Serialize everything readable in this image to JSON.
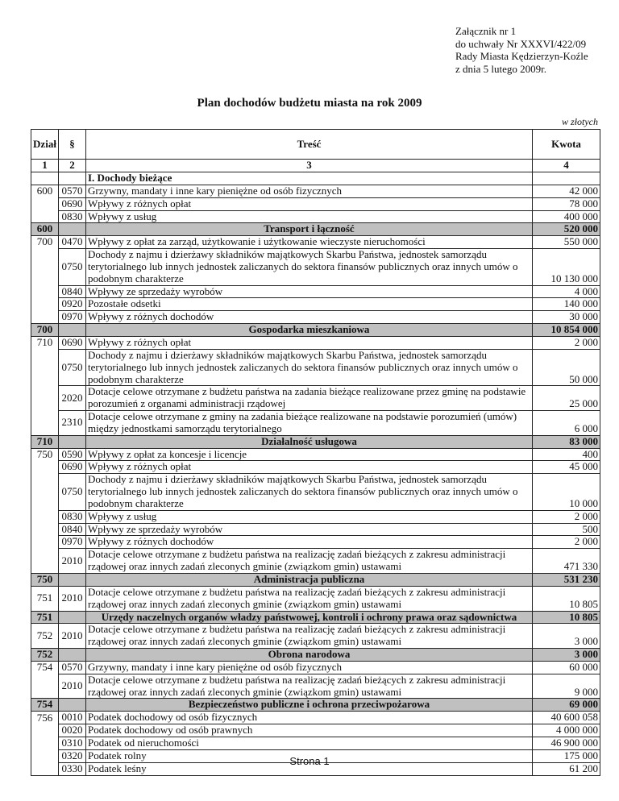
{
  "annex": [
    "Załącznik nr 1",
    "do uchwały Nr XXXVI/422/09",
    "Rady Miasta Kędzierzyn-Koźle",
    "z dnia 5 lutego 2009r."
  ],
  "title": "Plan dochodów budżetu miasta na rok 2009",
  "unit": "w złotych",
  "headers": {
    "dzial": "Dział",
    "par": "§",
    "tresc": "Treść",
    "kwota": "Kwota"
  },
  "col_numbers": [
    "1",
    "2",
    "3",
    "4"
  ],
  "rows": [
    {
      "type": "section",
      "dzial": "",
      "par": "",
      "text": "I. Dochody bieżące",
      "amount": ""
    },
    {
      "type": "item",
      "dzial": "600",
      "par": "0570",
      "text": "Grzywny, mandaty i inne kary pieniężne od osób fizycznych",
      "amount": "42 000"
    },
    {
      "type": "item",
      "dzial": "",
      "par": "0690",
      "text": "Wpływy z różnych opłat",
      "amount": "78 000"
    },
    {
      "type": "item",
      "dzial": "",
      "par": "0830",
      "text": "Wpływy z usług",
      "amount": "400 000"
    },
    {
      "type": "sum",
      "dzial": "600",
      "par": "",
      "text": "Transport i łączność",
      "amount": "520 000"
    },
    {
      "type": "item",
      "dzial": "700",
      "par": "0470",
      "text": "Wpływy z opłat za zarząd, użytkowanie i użytkowanie wieczyste nieruchomości",
      "amount": "550 000"
    },
    {
      "type": "item",
      "dzial": "",
      "par": "0750",
      "text": "Dochody z najmu i dzierżawy składników majątkowych Skarbu Państwa, jednostek samorządu terytorialnego lub innych jednostek zaliczanych do sektora finansów publicznych oraz innych umów  o podobnym charakterze",
      "amount": "10 130 000"
    },
    {
      "type": "item",
      "dzial": "",
      "par": "0840",
      "text": "Wpływy ze sprzedaży wyrobów",
      "amount": "4 000"
    },
    {
      "type": "item",
      "dzial": "",
      "par": "0920",
      "text": "Pozostałe odsetki",
      "amount": "140 000"
    },
    {
      "type": "item",
      "dzial": "",
      "par": "0970",
      "text": "Wpływy z różnych dochodów",
      "amount": "30 000"
    },
    {
      "type": "sum",
      "dzial": "700",
      "par": "",
      "text": "Gospodarka mieszkaniowa",
      "amount": "10 854 000"
    },
    {
      "type": "item",
      "dzial": "710",
      "par": "0690",
      "text": "Wpływy z różnych opłat",
      "amount": "2 000"
    },
    {
      "type": "item",
      "dzial": "",
      "par": "0750",
      "text": "Dochody z najmu i dzierżawy składników majątkowych Skarbu Państwa, jednostek samorządu terytorialnego lub innych jednostek zaliczanych do sektora finansów publicznych oraz innych umów o podobnym charakterze",
      "amount": "50 000"
    },
    {
      "type": "item",
      "dzial": "",
      "par": "2020",
      "text": "Dotacje celowe otrzymane z budżetu państwa na zadania bieżące realizowane przez gminę na podstawie porozumień z organami administracji rządowej",
      "amount": "25 000"
    },
    {
      "type": "item",
      "dzial": "",
      "par": "2310",
      "text": "Dotacje celowe otrzymane z gminy na zadania bieżące realizowane na podstawie porozumień (umów) między jednostkami samorządu terytorialnego",
      "amount": "6 000"
    },
    {
      "type": "sum",
      "dzial": "710",
      "par": "",
      "text": "Działalność usługowa",
      "amount": "83 000"
    },
    {
      "type": "item",
      "dzial": "750",
      "par": "0590",
      "text": "Wpływy z opłat za koncesje i licencje",
      "amount": "400"
    },
    {
      "type": "item",
      "dzial": "",
      "par": "0690",
      "text": "Wpływy z różnych opłat",
      "amount": "45 000"
    },
    {
      "type": "item",
      "dzial": "",
      "par": "0750",
      "text": "Dochody z najmu i dzierżawy składników majątkowych Skarbu Państwa, jednostek samorządu terytorialnego lub innych jednostek zaliczanych do sektora finansów publicznych oraz innych umów o podobnym charakterze",
      "amount": "10 000"
    },
    {
      "type": "item",
      "dzial": "",
      "par": "0830",
      "text": "Wpływy z usług",
      "amount": "2 000"
    },
    {
      "type": "item",
      "dzial": "",
      "par": "0840",
      "text": "Wpływy ze sprzedaży wyrobów",
      "amount": "500"
    },
    {
      "type": "item",
      "dzial": "",
      "par": "0970",
      "text": "Wpływy z różnych dochodów",
      "amount": "2 000"
    },
    {
      "type": "item",
      "dzial": "",
      "par": "2010",
      "text": "Dotacje celowe otrzymane z budżetu państwa na realizację zadań bieżących z zakresu administracji rządowej oraz innych zadań zleconych gminie (związkom gmin) ustawami",
      "amount": "471 330"
    },
    {
      "type": "sum",
      "dzial": "750",
      "par": "",
      "text": "Administracja publiczna",
      "amount": "531 230"
    },
    {
      "type": "item",
      "dzial": "751",
      "par": "2010",
      "text": "Dotacje celowe otrzymane z budżetu państwa na realizację zadań bieżących z zakresu administracji rządowej oraz innych zadań zleconych gminie (związkom gmin) ustawami",
      "amount": "10 805"
    },
    {
      "type": "sum",
      "dzial": "751",
      "par": "",
      "text": "Urzędy naczelnych organów władzy państwowej, kontroli i ochrony prawa oraz sądownictwa",
      "amount": "10 805"
    },
    {
      "type": "item",
      "dzial": "752",
      "par": "2010",
      "text": "Dotacje celowe otrzymane z budżetu państwa na realizację zadań bieżących z zakresu administracji rządowej oraz innych zadań zleconych gminie (związkom gmin) ustawami",
      "amount": "3 000"
    },
    {
      "type": "sum",
      "dzial": "752",
      "par": "",
      "text": "Obrona narodowa",
      "amount": "3 000"
    },
    {
      "type": "item",
      "dzial": "754",
      "par": "0570",
      "text": "Grzywny, mandaty i inne kary pieniężne od osób fizycznych",
      "amount": "60 000"
    },
    {
      "type": "item",
      "dzial": "",
      "par": "2010",
      "text": "Dotacje celowe otrzymane z budżetu państwa na realizację zadań bieżących z zakresu administracji rządowej oraz innych zadań zleconych gminie (związkom gmin) ustawami",
      "amount": "9 000"
    },
    {
      "type": "sum",
      "dzial": "754",
      "par": "",
      "text": "Bezpieczeństwo publiczne i ochrona przeciwpożarowa",
      "amount": "69 000"
    },
    {
      "type": "item",
      "dzial": "756",
      "par": "0010",
      "text": "Podatek dochodowy od osób fizycznych",
      "amount": "40 600 058"
    },
    {
      "type": "item",
      "dzial": "",
      "par": "0020",
      "text": "Podatek dochodowy od osób prawnych",
      "amount": "4 000 000"
    },
    {
      "type": "item",
      "dzial": "",
      "par": "0310",
      "text": "Podatek od nieruchomości",
      "amount": "46 900 000"
    },
    {
      "type": "item",
      "dzial": "",
      "par": "0320",
      "text": "Podatek rolny",
      "amount": "175 000"
    },
    {
      "type": "item",
      "dzial": "",
      "par": "0330",
      "text": "Podatek leśny",
      "amount": "61 200"
    }
  ],
  "footer": "Strona 1"
}
